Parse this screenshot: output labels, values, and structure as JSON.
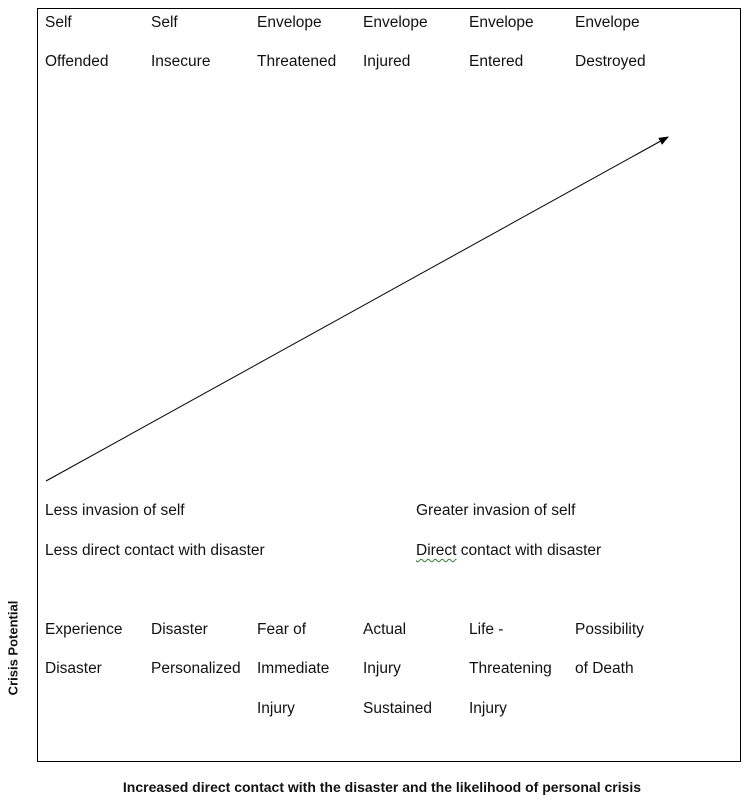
{
  "top_labels": [
    [
      "Self",
      "Offended"
    ],
    [
      "Self",
      "Insecure"
    ],
    [
      "Envelope",
      "Threatened"
    ],
    [
      "Envelope",
      "Injured"
    ],
    [
      "Envelope",
      "Entered"
    ],
    [
      "Envelope",
      "Destroyed"
    ]
  ],
  "left_labels": {
    "invasion": "Less invasion of self",
    "contact": "Less direct contact with disaster"
  },
  "right_labels": {
    "invasion": "Greater invasion of self",
    "contact_first_word": "Direct",
    "contact_rest": " contact with disaster"
  },
  "bottom_labels": [
    [
      "Experience",
      "Disaster",
      ""
    ],
    [
      "Disaster",
      "Personalized",
      ""
    ],
    [
      "Fear of",
      "Immediate",
      "Injury"
    ],
    [
      "Actual",
      "Injury",
      "Sustained"
    ],
    [
      "Life -",
      "Threatening",
      "Injury"
    ],
    [
      "Possibility",
      "of Death",
      ""
    ]
  ],
  "y_axis_label": "Crisis Potential",
  "x_axis_label": "Increased direct contact with the disaster and the likelihood of personal crisis",
  "spellcheck_color": "#2e7d32"
}
